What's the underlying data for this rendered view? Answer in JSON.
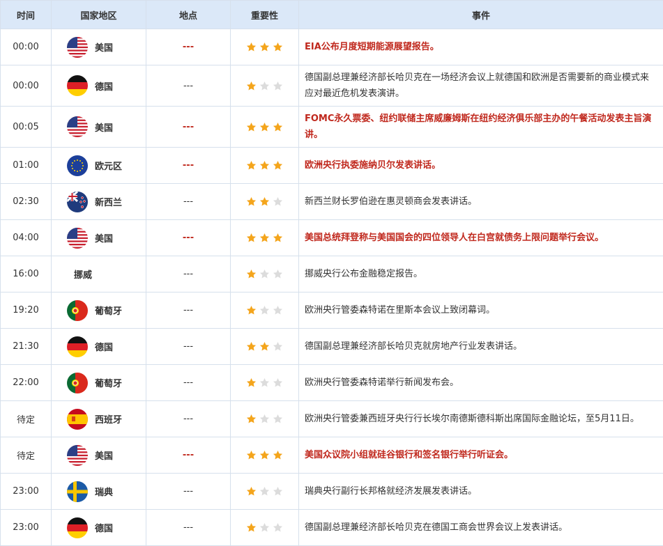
{
  "table": {
    "header": [
      "时间",
      "国家地区",
      "地点",
      "重要性",
      "事件"
    ],
    "rows": [
      {
        "time": "00:00",
        "country": "美国",
        "location": "---",
        "stars": 3,
        "event": "EIA公布月度短期能源展望报告。"
      },
      {
        "time": "00:00",
        "country": "德国",
        "location": "---",
        "stars": 1,
        "event": "德国副总理兼经济部长哈贝克在一场经济会议上就德国和欧洲是否需要新的商业模式来应对最近危机发表演讲。"
      },
      {
        "time": "00:05",
        "country": "美国",
        "location": "---",
        "stars": 3,
        "event": "FOMC永久票委、纽约联储主席威廉姆斯在纽约经济俱乐部主办的午餐活动发表主旨演讲。"
      },
      {
        "time": "01:00",
        "country": "欧元区",
        "location": "---",
        "stars": 3,
        "event": "欧洲央行执委施纳贝尔发表讲话。"
      },
      {
        "time": "02:30",
        "country": "新西兰",
        "location": "---",
        "stars": 2,
        "event": "新西兰财长罗伯逊在惠灵顿商会发表讲话。"
      },
      {
        "time": "04:00",
        "country": "美国",
        "location": "---",
        "stars": 3,
        "event": "美国总统拜登称与美国国会的四位领导人在白宫就债务上限问题举行会议。"
      },
      {
        "time": "16:00",
        "country": "挪威",
        "location": "---",
        "stars": 1,
        "event": "挪威央行公布金融稳定报告。"
      },
      {
        "time": "19:20",
        "country": "葡萄牙",
        "location": "---",
        "stars": 1,
        "event": "欧洲央行管委森特诺在里斯本会议上致闭幕词。"
      },
      {
        "time": "21:30",
        "country": "德国",
        "location": "---",
        "stars": 2,
        "event": "德国副总理兼经济部长哈贝克就房地产行业发表讲话。"
      },
      {
        "time": "22:00",
        "country": "葡萄牙",
        "location": "---",
        "stars": 1,
        "event": "欧洲央行管委森特诺举行新闻发布会。"
      },
      {
        "time": "待定",
        "country": "西班牙",
        "location": "---",
        "stars": 1,
        "event": "欧洲央行管委兼西班牙央行行长埃尔南德斯德科斯出席国际金融论坛，至5月11日。"
      },
      {
        "time": "待定",
        "country": "美国",
        "location": "---",
        "stars": 3,
        "event": "美国众议院小组就硅谷银行和签名银行举行听证会。"
      },
      {
        "time": "23:00",
        "country": "瑞典",
        "location": "---",
        "stars": 1,
        "event": "瑞典央行副行长邦格就经济发展发表讲话。"
      },
      {
        "time": "23:00",
        "country": "德国",
        "location": "---",
        "stars": 1,
        "event": "德国副总理兼经济部长哈贝克在德国工商会世界会议上发表讲话。"
      }
    ]
  }
}
